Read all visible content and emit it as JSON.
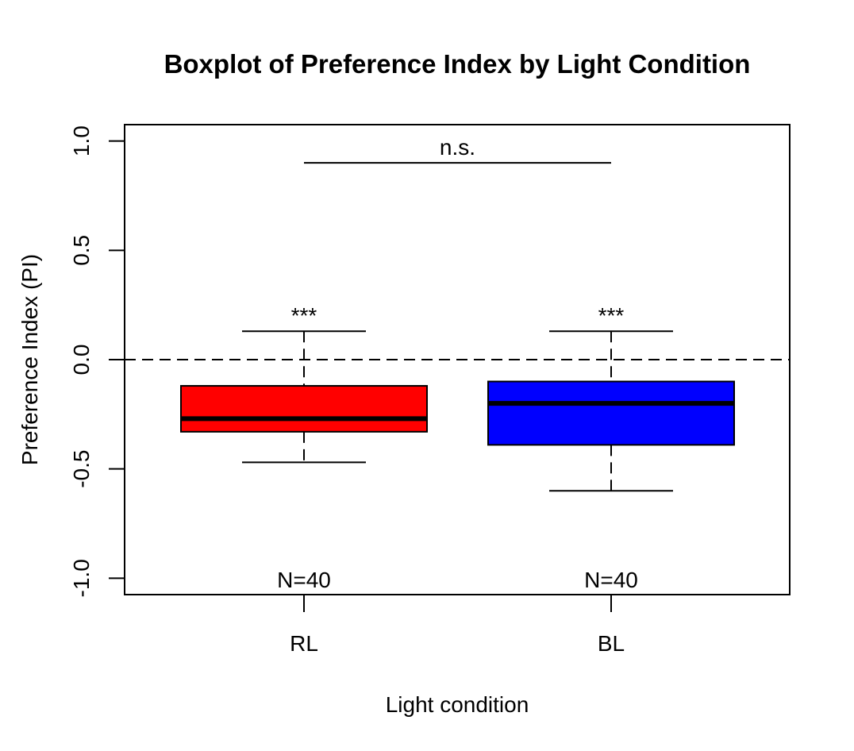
{
  "chart_data": {
    "type": "boxplot",
    "title": "Boxplot of Preference Index by Light Condition",
    "xlabel": "Light condition",
    "ylabel": "Preference Index (PI)",
    "ylim": [
      -1.075,
      1.075
    ],
    "yticks": [
      -1.0,
      -0.5,
      0.0,
      0.5,
      1.0
    ],
    "ytick_labels": [
      "-1.0",
      "-0.5",
      "0.0",
      "0.5",
      "1.0"
    ],
    "grid": false,
    "reference_line": {
      "y": 0.0,
      "style": "dashed"
    },
    "categories": [
      "RL",
      "BL"
    ],
    "boxes": [
      {
        "category": "RL",
        "color": "#ff0000",
        "whisker_low": -0.47,
        "q1": -0.33,
        "median": -0.27,
        "q3": -0.12,
        "whisker_high": 0.13
      },
      {
        "category": "BL",
        "color": "#0000ff",
        "whisker_low": -0.6,
        "q1": -0.39,
        "median": -0.2,
        "q3": -0.1,
        "whisker_high": 0.13
      }
    ],
    "annotations": {
      "significance_stars": [
        "***",
        "***"
      ],
      "sample_sizes": [
        "N=40",
        "N=40"
      ],
      "comparison": {
        "label": "n.s.",
        "y": 0.9
      }
    }
  }
}
